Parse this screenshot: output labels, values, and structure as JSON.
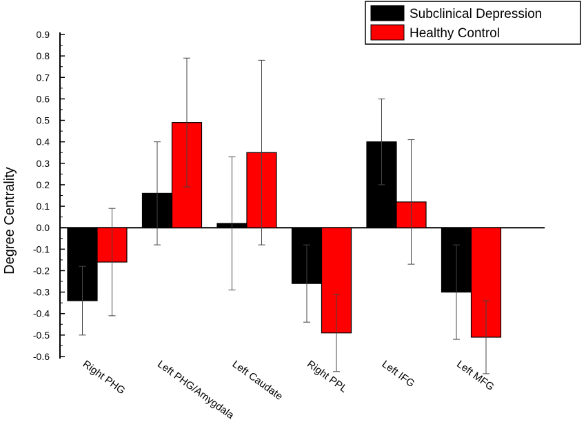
{
  "chart_data": {
    "type": "bar",
    "title": "",
    "xlabel": "",
    "ylabel": "Degree Centrality",
    "ylim": [
      -0.65,
      0.9
    ],
    "yticks": [
      -0.6,
      -0.5,
      -0.4,
      -0.3,
      -0.2,
      -0.1,
      0.0,
      0.1,
      0.2,
      0.3,
      0.4,
      0.5,
      0.6,
      0.7,
      0.8,
      0.9
    ],
    "ytick_labels": [
      "-0.6",
      "-0.5",
      "-0.4",
      "-0.3",
      "-0.2",
      "-0.1",
      "0.0",
      "0.1",
      "0.2",
      "0.3",
      "0.4",
      "0.5",
      "0.6",
      "0.7",
      "0.8",
      "0.9"
    ],
    "categories": [
      "Right PHG",
      "Left PHG/Amygdala",
      "Left Caudate",
      "Right PPL",
      "Left IFG",
      "Left MFG"
    ],
    "legend_position": "top-right",
    "series": [
      {
        "name": "Subclinical Depression",
        "color": "#000000",
        "values": [
          -0.34,
          0.16,
          0.02,
          -0.26,
          0.4,
          -0.3
        ],
        "error": [
          0.16,
          0.24,
          0.31,
          0.18,
          0.2,
          0.22
        ]
      },
      {
        "name": "Healthy Control",
        "color": "#ff0000",
        "values": [
          -0.16,
          0.49,
          0.35,
          -0.49,
          0.12,
          -0.51
        ],
        "error": [
          0.25,
          0.3,
          0.43,
          0.18,
          0.29,
          0.17
        ]
      }
    ]
  }
}
